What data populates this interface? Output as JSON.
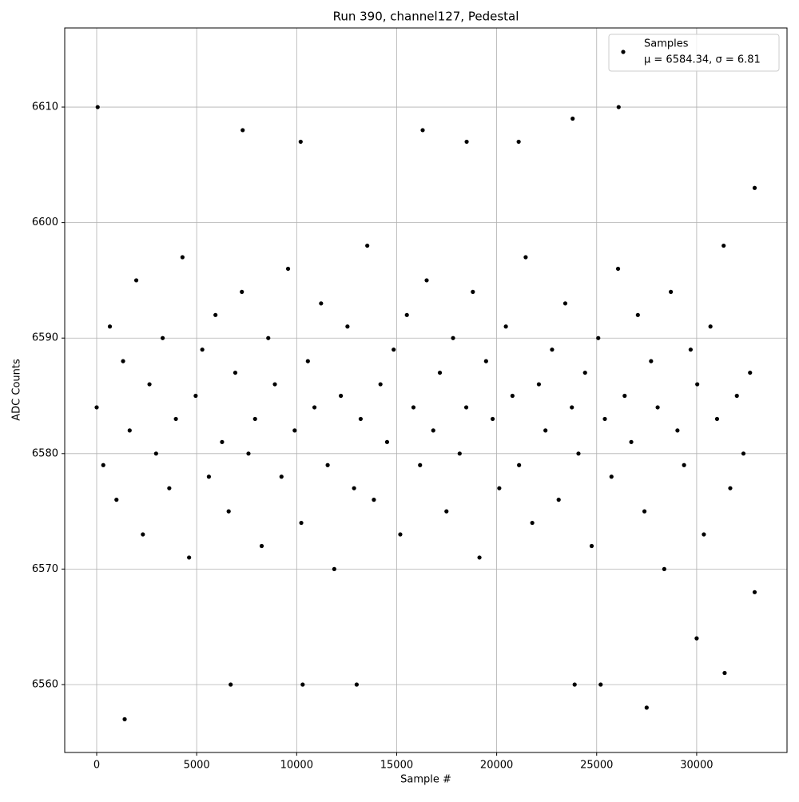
{
  "chart_data": {
    "type": "scatter",
    "title": "Run 390, channel127, Pedestal",
    "x_label": "Sample #",
    "y_label": "ADC Counts",
    "series": [
      {
        "name": "Samples",
        "color": "#000000",
        "x": [
          0,
          330,
          660,
          990,
          1320,
          1650,
          1980,
          2310,
          2640,
          2970,
          3300,
          3630,
          3960,
          4290,
          4620,
          4950,
          5280,
          5610,
          5940,
          6270,
          6600,
          6930,
          7260,
          7590,
          7920,
          8250,
          8580,
          8910,
          9240,
          9570,
          9900,
          10230,
          10560,
          10890,
          11220,
          11550,
          11880,
          12210,
          12540,
          12870,
          13200,
          13530,
          13860,
          14190,
          14520,
          14850,
          15180,
          15510,
          15840,
          16170,
          16500,
          16830,
          17160,
          17490,
          17820,
          18150,
          18480,
          18810,
          19140,
          19470,
          19800,
          20130,
          20460,
          20790,
          21120,
          21450,
          21780,
          22110,
          22440,
          22770,
          23100,
          23430,
          23760,
          24090,
          24420,
          24750,
          25080,
          25410,
          25740,
          26070,
          26400,
          26730,
          27060,
          27390,
          27720,
          28050,
          28380,
          28710,
          29040,
          29370,
          29700,
          30030,
          30360,
          30690,
          31020,
          31350,
          31680,
          32010,
          32340,
          32670,
          50,
          1400,
          6700,
          10300,
          13000,
          23900,
          25200,
          27500,
          26100,
          23800,
          7300,
          16300,
          10200,
          21100,
          18500,
          30000,
          31400,
          32900,
          32900
        ],
        "values": [
          6584,
          6579,
          6591,
          6576,
          6588,
          6582,
          6595,
          6573,
          6586,
          6580,
          6590,
          6577,
          6583,
          6597,
          6571,
          6585,
          6589,
          6578,
          6592,
          6581,
          6575,
          6587,
          6594,
          6580,
          6583,
          6572,
          6590,
          6586,
          6578,
          6596,
          6582,
          6574,
          6588,
          6584,
          6593,
          6579,
          6570,
          6585,
          6591,
          6577,
          6583,
          6598,
          6576,
          6586,
          6581,
          6589,
          6573,
          6592,
          6584,
          6579,
          6595,
          6582,
          6587,
          6575,
          6590,
          6580,
          6584,
          6594,
          6571,
          6588,
          6583,
          6577,
          6591,
          6585,
          6579,
          6597,
          6574,
          6586,
          6582,
          6589,
          6576,
          6593,
          6584,
          6580,
          6587,
          6572,
          6590,
          6583,
          6578,
          6596,
          6585,
          6581,
          6592,
          6575,
          6588,
          6584,
          6570,
          6594,
          6582,
          6579,
          6589,
          6586,
          6573,
          6591,
          6583,
          6598,
          6577,
          6585,
          6580,
          6587,
          6610,
          6557,
          6560,
          6560,
          6560,
          6560,
          6560,
          6558,
          6610,
          6609,
          6608,
          6608,
          6607,
          6607,
          6607,
          6564,
          6561,
          6603,
          6568
        ]
      }
    ],
    "legend_note": "μ = 6584.34, σ = 6.81",
    "xlim": [
      -1598,
      34518
    ],
    "ylim": [
      6554.12,
      6616.85
    ],
    "xticks": [
      0,
      5000,
      10000,
      15000,
      20000,
      25000,
      30000
    ],
    "yticks": [
      6560,
      6570,
      6580,
      6590,
      6600,
      6610
    ],
    "grid": true,
    "legend_position": "upper right"
  }
}
